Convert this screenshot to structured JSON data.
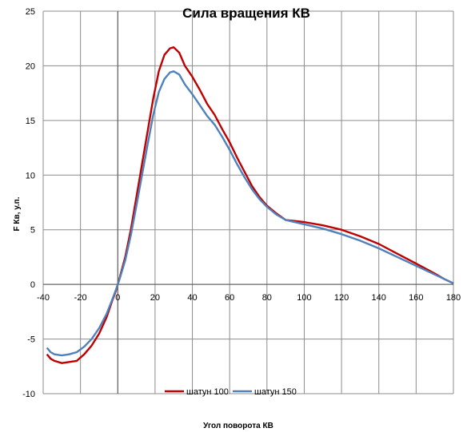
{
  "chart_data": {
    "type": "line",
    "title": "Сила вращения КВ",
    "xlabel": "Угол поворота  КВ",
    "ylabel": "F Кв, у.п.",
    "xlim": [
      -40,
      180
    ],
    "ylim": [
      -10,
      25
    ],
    "x_ticks": [
      "-40",
      "-20",
      "0",
      "20",
      "40",
      "60",
      "80",
      "100",
      "120",
      "140",
      "160",
      "180"
    ],
    "y_ticks": [
      "-10",
      "-5",
      "0",
      "5",
      "10",
      "15",
      "20",
      "25"
    ],
    "grid": true,
    "legend_position": "bottom",
    "series": [
      {
        "name": "шатун 100",
        "color": "#C00000",
        "points": [
          [
            -38,
            -6.4
          ],
          [
            -36,
            -6.8
          ],
          [
            -34,
            -7.0
          ],
          [
            -30,
            -7.2
          ],
          [
            -26,
            -7.1
          ],
          [
            -22,
            -7.0
          ],
          [
            -18,
            -6.4
          ],
          [
            -14,
            -5.6
          ],
          [
            -10,
            -4.5
          ],
          [
            -6,
            -3.0
          ],
          [
            -3,
            -1.5
          ],
          [
            -1,
            -0.6
          ],
          [
            1,
            0.6
          ],
          [
            4,
            2.5
          ],
          [
            7,
            5.0
          ],
          [
            10,
            8.0
          ],
          [
            13,
            11.0
          ],
          [
            16,
            14.0
          ],
          [
            19,
            17.0
          ],
          [
            22,
            19.5
          ],
          [
            25,
            21.0
          ],
          [
            28,
            21.6
          ],
          [
            30,
            21.7
          ],
          [
            33,
            21.2
          ],
          [
            36,
            20.0
          ],
          [
            40,
            19.0
          ],
          [
            44,
            17.8
          ],
          [
            48,
            16.5
          ],
          [
            52,
            15.5
          ],
          [
            56,
            14.2
          ],
          [
            60,
            13.0
          ],
          [
            64,
            11.6
          ],
          [
            68,
            10.3
          ],
          [
            72,
            9.0
          ],
          [
            76,
            8.0
          ],
          [
            80,
            7.2
          ],
          [
            85,
            6.5
          ],
          [
            90,
            5.9
          ],
          [
            100,
            5.7
          ],
          [
            110,
            5.4
          ],
          [
            120,
            5.0
          ],
          [
            130,
            4.4
          ],
          [
            140,
            3.7
          ],
          [
            150,
            2.8
          ],
          [
            160,
            1.9
          ],
          [
            170,
            1.0
          ],
          [
            175,
            0.5
          ],
          [
            180,
            0.1
          ]
        ]
      },
      {
        "name": "шатун 150",
        "color": "#4F81BD",
        "points": [
          [
            -38,
            -5.8
          ],
          [
            -36,
            -6.2
          ],
          [
            -34,
            -6.4
          ],
          [
            -30,
            -6.5
          ],
          [
            -26,
            -6.4
          ],
          [
            -22,
            -6.2
          ],
          [
            -18,
            -5.7
          ],
          [
            -14,
            -5.0
          ],
          [
            -10,
            -4.0
          ],
          [
            -6,
            -2.7
          ],
          [
            -3,
            -1.4
          ],
          [
            -1,
            -0.5
          ],
          [
            1,
            0.5
          ],
          [
            4,
            2.2
          ],
          [
            7,
            4.5
          ],
          [
            10,
            7.2
          ],
          [
            13,
            10.0
          ],
          [
            16,
            12.8
          ],
          [
            19,
            15.5
          ],
          [
            22,
            17.6
          ],
          [
            25,
            18.8
          ],
          [
            28,
            19.4
          ],
          [
            30,
            19.5
          ],
          [
            33,
            19.2
          ],
          [
            36,
            18.3
          ],
          [
            40,
            17.4
          ],
          [
            44,
            16.4
          ],
          [
            48,
            15.4
          ],
          [
            52,
            14.6
          ],
          [
            56,
            13.5
          ],
          [
            60,
            12.3
          ],
          [
            64,
            11.0
          ],
          [
            68,
            9.8
          ],
          [
            72,
            8.7
          ],
          [
            76,
            7.8
          ],
          [
            80,
            7.1
          ],
          [
            85,
            6.4
          ],
          [
            90,
            5.9
          ],
          [
            100,
            5.5
          ],
          [
            110,
            5.1
          ],
          [
            120,
            4.6
          ],
          [
            130,
            4.0
          ],
          [
            140,
            3.3
          ],
          [
            150,
            2.5
          ],
          [
            160,
            1.7
          ],
          [
            170,
            0.9
          ],
          [
            175,
            0.5
          ],
          [
            180,
            0.1
          ]
        ]
      }
    ]
  }
}
